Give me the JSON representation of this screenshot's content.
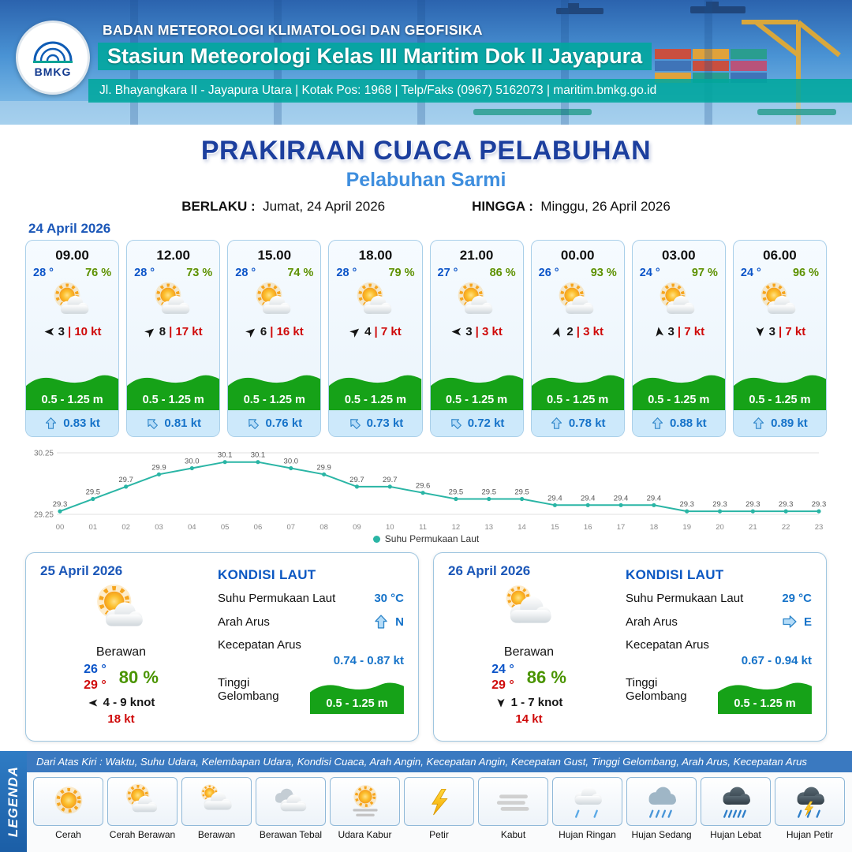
{
  "header": {
    "org": "BADAN METEOROLOGI KLIMATOLOGI DAN GEOFISIKA",
    "station": "Stasiun Meteorologi Kelas III Maritim Dok II Jayapura",
    "address": "Jl. Bhayangkara II - Jayapura Utara | Kotak Pos: 1968 | Telp/Faks (0967) 5162073 | maritim.bmkg.go.id",
    "logo_text": "BMKG"
  },
  "title": {
    "main": "PRAKIRAAN CUACA PELABUHAN",
    "subtitle": "Pelabuhan Sarmi",
    "berlaku_label": "BERLAKU :",
    "berlaku_value": "Jumat, 24 April 2026",
    "hingga_label": "HINGGA :",
    "hingga_value": "Minggu, 26 April 2026"
  },
  "forecast": {
    "date": "24 April 2026",
    "sep": "|",
    "cards": [
      {
        "time": "09.00",
        "temp": "28 °",
        "rh": "76 %",
        "icon": "cerah-berawan",
        "wind_dir_deg": 180,
        "wind": "3",
        "gust": "10 kt",
        "wave": "0.5 - 1.25 m",
        "current_dir_deg": 0,
        "current": "0.83 kt"
      },
      {
        "time": "12.00",
        "temp": "28 °",
        "rh": "73 %",
        "icon": "cerah-berawan",
        "wind_dir_deg": 320,
        "wind": "8",
        "gust": "17 kt",
        "wave": "0.5 - 1.25 m",
        "current_dir_deg": 315,
        "current": "0.81 kt"
      },
      {
        "time": "15.00",
        "temp": "28 °",
        "rh": "74 %",
        "icon": "cerah-berawan",
        "wind_dir_deg": 320,
        "wind": "6",
        "gust": "16 kt",
        "wave": "0.5 - 1.25 m",
        "current_dir_deg": 315,
        "current": "0.76 kt"
      },
      {
        "time": "18.00",
        "temp": "28 °",
        "rh": "79 %",
        "icon": "cerah-berawan",
        "wind_dir_deg": 320,
        "wind": "4",
        "gust": "7 kt",
        "wave": "0.5 - 1.25 m",
        "current_dir_deg": 315,
        "current": "0.73 kt"
      },
      {
        "time": "21.00",
        "temp": "27 °",
        "rh": "86 %",
        "icon": "cerah-berawan",
        "wind_dir_deg": 180,
        "wind": "3",
        "gust": "3 kt",
        "wave": "0.5 - 1.25 m",
        "current_dir_deg": 315,
        "current": "0.72 kt"
      },
      {
        "time": "00.00",
        "temp": "26 °",
        "rh": "93 %",
        "icon": "cerah-berawan",
        "wind_dir_deg": 285,
        "wind": "2",
        "gust": "3 kt",
        "wave": "0.5 - 1.25 m",
        "current_dir_deg": 0,
        "current": "0.78 kt"
      },
      {
        "time": "03.00",
        "temp": "24 °",
        "rh": "97 %",
        "icon": "cerah-berawan",
        "wind_dir_deg": 262,
        "wind": "3",
        "gust": "7 kt",
        "wave": "0.5 - 1.25 m",
        "current_dir_deg": 0,
        "current": "0.88 kt"
      },
      {
        "time": "06.00",
        "temp": "24 °",
        "rh": "96 %",
        "icon": "cerah-berawan",
        "wind_dir_deg": 90,
        "wind": "3",
        "gust": "7 kt",
        "wave": "0.5 - 1.25 m",
        "current_dir_deg": 0,
        "current": "0.89 kt"
      }
    ]
  },
  "chart_data": {
    "type": "line",
    "x": [
      "00",
      "01",
      "02",
      "03",
      "04",
      "05",
      "06",
      "07",
      "08",
      "09",
      "10",
      "11",
      "12",
      "13",
      "14",
      "15",
      "16",
      "17",
      "18",
      "19",
      "20",
      "21",
      "22",
      "23"
    ],
    "values": [
      29.3,
      29.5,
      29.7,
      29.9,
      30.0,
      30.1,
      30.1,
      30.0,
      29.9,
      29.7,
      29.7,
      29.6,
      29.5,
      29.5,
      29.5,
      29.4,
      29.4,
      29.4,
      29.4,
      29.3,
      29.3,
      29.3,
      29.3,
      29.3
    ],
    "series_name": "Suhu Permukaan Laut",
    "ylim": [
      29.25,
      30.25
    ],
    "yticks": [
      29.25,
      30.25
    ],
    "line_color": "#2ab5a5",
    "grid": "light",
    "legend_position": "bottom"
  },
  "days": [
    {
      "date": "25 April 2026",
      "icon": "cerah-berawan",
      "condition": "Berawan",
      "temp_min": "26 °",
      "temp_max": "29 °",
      "rh": "80 %",
      "wind_dir_deg": 180,
      "wind_range": "4 - 9 knot",
      "gust": "18 kt",
      "kondisi_title": "KONDISI LAUT",
      "sst_label": "Suhu Permukaan Laut",
      "sst": "30 °C",
      "arus_label": "Arah Arus",
      "arus_dir": "N",
      "arus_deg": 0,
      "kecepatan_label": "Kecepatan Arus",
      "kecepatan": "0.74 -  0.87 kt",
      "gelombang_label": "Tinggi Gelombang",
      "gelombang": "0.5 - 1.25 m"
    },
    {
      "date": "26 April 2026",
      "icon": "berawan",
      "condition": "Berawan",
      "temp_min": "24 °",
      "temp_max": "29 °",
      "rh": "86 %",
      "wind_dir_deg": 90,
      "wind_range": "1 - 7 knot",
      "gust": "14 kt",
      "kondisi_title": "KONDISI LAUT",
      "sst_label": "Suhu Permukaan Laut",
      "sst": "29 °C",
      "arus_label": "Arah Arus",
      "arus_dir": "E",
      "arus_deg": 90,
      "kecepatan_label": "Kecepatan Arus",
      "kecepatan": "0.67 - 0.94 kt",
      "gelombang_label": "Tinggi Gelombang",
      "gelombang": "0.5 - 1.25 m"
    }
  ],
  "legend": {
    "title": "LEGENDA",
    "note": "Dari Atas Kiri : Waktu, Suhu Udara, Kelembapan Udara, Kondisi Cuaca, Arah Angin, Kecepatan Angin, Kecepatan Gust, Tinggi Gelombang, Arah Arus, Kecepatan Arus",
    "items": [
      {
        "label": "Cerah",
        "icon": "cerah"
      },
      {
        "label": "Cerah Berawan",
        "icon": "cerah-berawan"
      },
      {
        "label": "Berawan",
        "icon": "berawan"
      },
      {
        "label": "Berawan Tebal",
        "icon": "berawan-tebal"
      },
      {
        "label": "Udara Kabur",
        "icon": "udara-kabur"
      },
      {
        "label": "Petir",
        "icon": "petir"
      },
      {
        "label": "Kabut",
        "icon": "kabut"
      },
      {
        "label": "Hujan Ringan",
        "icon": "hujan-ringan"
      },
      {
        "label": "Hujan Sedang",
        "icon": "hujan-sedang"
      },
      {
        "label": "Hujan Lebat",
        "icon": "hujan-lebat"
      },
      {
        "label": "Hujan Petir",
        "icon": "hujan-petir"
      }
    ]
  },
  "colors": {
    "teal_accent": "#00a79d",
    "title_blue": "#1c3f9e",
    "subtitle_blue": "#3e8ede",
    "temp_blue": "#0b54c8",
    "humidity_green": "#5d9100",
    "gust_red": "#cf0a0a",
    "wave_green": "#16a218",
    "current_blue": "#1673c9",
    "chart_teal": "#2ab5a5"
  }
}
